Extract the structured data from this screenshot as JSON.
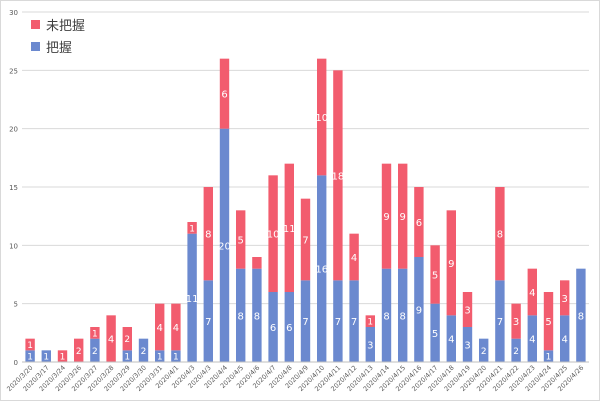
{
  "chart_data": {
    "type": "bar",
    "stacked": true,
    "categories": [
      "2020/3/20",
      "2020/3/17",
      "2020/3/24",
      "2020/3/26",
      "2020/3/27",
      "2020/3/28",
      "2020/3/29",
      "2020/3/30",
      "2020/3/31",
      "2020/4/1",
      "2020/4/3",
      "2020/4/3",
      "2020/4/4",
      "2020/4/5",
      "2020/4/6",
      "2020/4/7",
      "2020/4/8",
      "2020/4/9",
      "2020/4/10",
      "2020/4/11",
      "2020/4/12",
      "2020/4/13",
      "2020/4/14",
      "2020/4/15",
      "2020/4/16",
      "2020/4/17",
      "2020/4/18",
      "2020/4/19",
      "2020/4/20",
      "2020/4/21",
      "2020/4/22",
      "2020/4/23",
      "2020/4/24",
      "2020/4/25",
      "2020/4/26"
    ],
    "series": [
      {
        "name": "把握",
        "color": "#6b89cf",
        "values": [
          1,
          1,
          0,
          0,
          2,
          0,
          1,
          2,
          1,
          1,
          11,
          7,
          20,
          8,
          8,
          6,
          6,
          7,
          16,
          7,
          7,
          3,
          8,
          8,
          9,
          5,
          4,
          3,
          2,
          7,
          2,
          4,
          1,
          4,
          8
        ]
      },
      {
        "name": "未把握",
        "color": "#f25c6e",
        "values": [
          1,
          0,
          1,
          2,
          1,
          4,
          2,
          0,
          4,
          4,
          1,
          8,
          6,
          5,
          1,
          10,
          11,
          7,
          10,
          18,
          4,
          1,
          9,
          9,
          6,
          5,
          9,
          3,
          0,
          8,
          3,
          4,
          5,
          3,
          0
        ]
      }
    ],
    "value_labels": {
      "bottom": [
        "1",
        "1",
        "",
        "",
        "2",
        "",
        "1",
        "2",
        "1",
        "1",
        "11",
        "7",
        "20",
        "8",
        "8",
        "6",
        "6",
        "7",
        "16",
        "7",
        "7",
        "3",
        "8",
        "8",
        "9",
        "5",
        "4",
        "3",
        "2",
        "7",
        "2",
        "4",
        "1",
        "4",
        "8"
      ],
      "top": [
        "1",
        "",
        "1",
        "2",
        "1",
        "4",
        "2",
        "",
        "4",
        "4",
        "1",
        "8",
        "6",
        "5",
        "",
        "10",
        "11",
        "7",
        "10",
        "18",
        "4",
        "1",
        "9",
        "9",
        "6",
        "5",
        "9",
        "3",
        "",
        "8",
        "3",
        "4",
        "5",
        "3",
        ""
      ]
    },
    "y_ticks": [
      0,
      5,
      10,
      15,
      20,
      25,
      30
    ],
    "ylim": [
      0,
      30
    ],
    "legend_position": "top-left",
    "grid": true,
    "title": "",
    "xlabel": "",
    "ylabel": ""
  }
}
